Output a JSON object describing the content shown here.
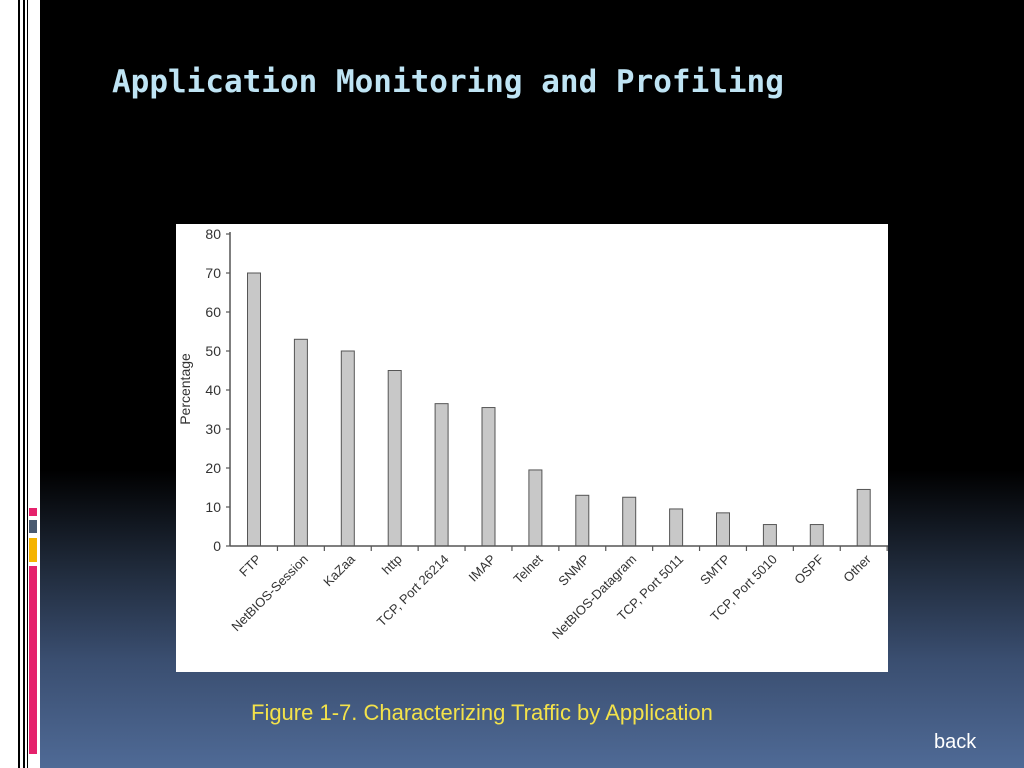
{
  "slide": {
    "title": "Application Monitoring and Profiling",
    "caption": "Figure 1-7. Characterizing Traffic by Application",
    "back_label": "back"
  },
  "theme": {
    "title_color": "#bfe4f4",
    "caption_color": "#f3e24a",
    "bar_fill": "#c8c8c8",
    "bar_stroke": "#555555",
    "accent_colors": [
      "#e5226c",
      "#4a5a70",
      "#f5b400",
      "#e5226c"
    ]
  },
  "chart_data": {
    "type": "bar",
    "title": "",
    "xlabel": "",
    "ylabel": "Percentage",
    "ylim": [
      0,
      80
    ],
    "yticks": [
      0,
      10,
      20,
      30,
      40,
      50,
      60,
      70,
      80
    ],
    "grid": false,
    "categories": [
      "FTP",
      "NetBIOS-Session",
      "KaZaa",
      "http",
      "TCP, Port 26214",
      "IMAP",
      "Telnet",
      "SNMP",
      "NetBIOS-Datagram",
      "TCP, Port 5011",
      "SMTP",
      "TCP, Port 5010",
      "OSPF",
      "Other"
    ],
    "values": [
      70,
      53,
      50,
      45,
      36.5,
      35.5,
      19.5,
      13,
      12.5,
      9.5,
      8.5,
      5.5,
      5.5,
      14.5
    ]
  }
}
